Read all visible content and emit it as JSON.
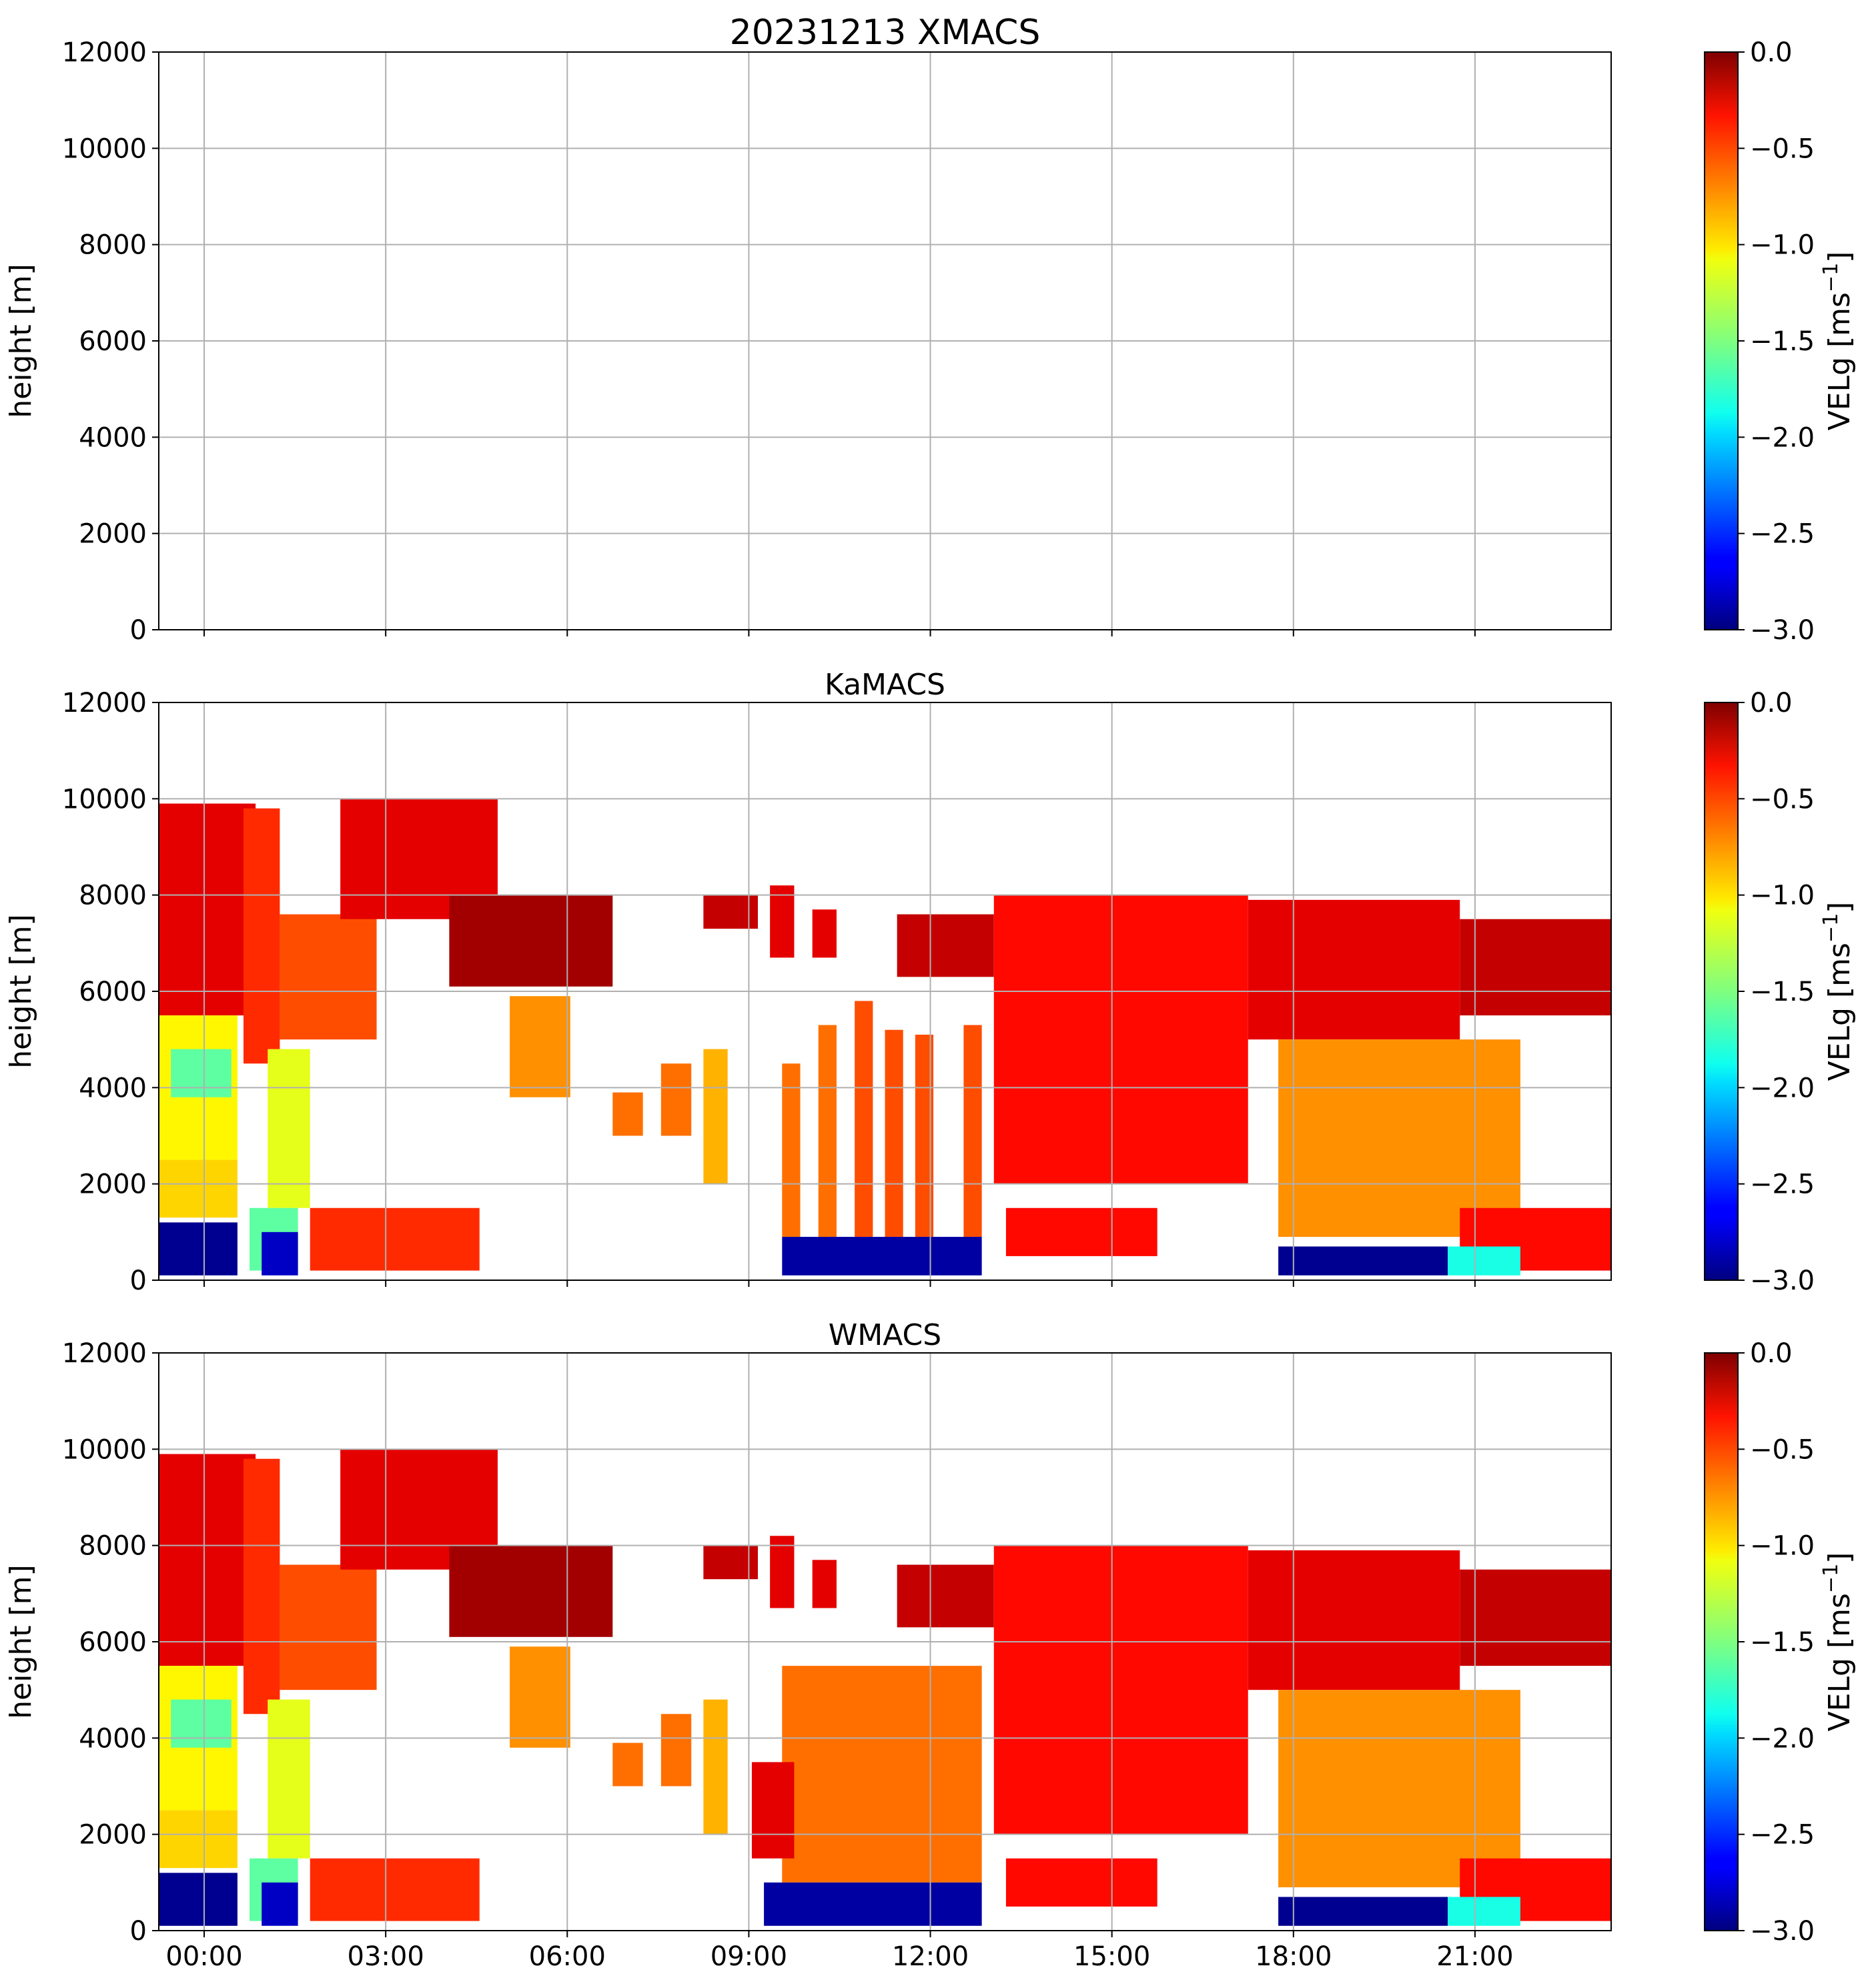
{
  "figure": {
    "colormap": "jet",
    "xtick_labels": [
      "00:00",
      "03:00",
      "06:00",
      "09:00",
      "12:00",
      "15:00",
      "18:00",
      "21:00"
    ],
    "xtick_hours": [
      0.75,
      3.75,
      6.75,
      9.75,
      12.75,
      15.75,
      18.75,
      21.75
    ],
    "xlim_hours": [
      0,
      24
    ],
    "grid": true
  },
  "chart_data": [
    {
      "type": "heatmap",
      "title": "20231213 XMACS",
      "ylabel": "height [m]",
      "ylim": [
        0,
        12000
      ],
      "yticks": [
        0,
        2000,
        4000,
        6000,
        8000,
        10000,
        12000
      ],
      "ytick_labels": [
        "0",
        "2000",
        "4000",
        "6000",
        "8000",
        "10000",
        "12000"
      ],
      "colorbar": {
        "label_main": "VELg [ms",
        "label_sup": "−1",
        "label_end": "]",
        "range": [
          -3.0,
          0.0
        ],
        "ticks": [
          0.0,
          -0.5,
          -1.0,
          -1.5,
          -2.0,
          -2.5,
          -3.0
        ],
        "tick_labels": [
          "0.0",
          "−0.5",
          "−1.0",
          "−1.5",
          "−2.0",
          "−2.5",
          "−3.0"
        ]
      },
      "cells": []
    },
    {
      "type": "heatmap",
      "title": "KaMACS",
      "ylabel": "height [m]",
      "ylim": [
        0,
        12000
      ],
      "yticks": [
        0,
        2000,
        4000,
        6000,
        8000,
        10000,
        12000
      ],
      "ytick_labels": [
        "0",
        "2000",
        "4000",
        "6000",
        "8000",
        "10000",
        "12000"
      ],
      "colorbar": {
        "label_main": "VELg [ms",
        "label_sup": "−1",
        "label_end": "]",
        "range": [
          -3.0,
          0.0
        ],
        "ticks": [
          0.0,
          -0.5,
          -1.0,
          -1.5,
          -2.0,
          -2.5,
          -3.0
        ],
        "tick_labels": [
          "0.0",
          "−0.5",
          "−1.0",
          "−1.5",
          "−2.0",
          "−2.5",
          "−3.0"
        ]
      },
      "cells": [
        {
          "t0": 0.0,
          "t1": 1.6,
          "h0": 5500,
          "h1": 9900,
          "v": -0.3
        },
        {
          "t0": 0.0,
          "t1": 1.3,
          "h0": 2500,
          "h1": 5500,
          "v": -1.1
        },
        {
          "t0": 0.2,
          "t1": 1.2,
          "h0": 3800,
          "h1": 4800,
          "v": -1.6
        },
        {
          "t0": 0.0,
          "t1": 1.3,
          "h0": 1300,
          "h1": 2500,
          "v": -1.0
        },
        {
          "t0": 1.4,
          "t1": 2.0,
          "h0": 4500,
          "h1": 9800,
          "v": -0.5
        },
        {
          "t0": 2.0,
          "t1": 3.6,
          "h0": 5000,
          "h1": 7600,
          "v": -0.6
        },
        {
          "t0": 1.8,
          "t1": 2.5,
          "h0": 1500,
          "h1": 4800,
          "v": -1.2
        },
        {
          "t0": 2.5,
          "t1": 5.3,
          "h0": 200,
          "h1": 1500,
          "v": -0.5
        },
        {
          "t0": 1.5,
          "t1": 2.3,
          "h0": 200,
          "h1": 1500,
          "v": -1.6
        },
        {
          "t0": 3.0,
          "t1": 5.6,
          "h0": 7500,
          "h1": 10000,
          "v": -0.3
        },
        {
          "t0": 4.8,
          "t1": 7.5,
          "h0": 6100,
          "h1": 8000,
          "v": -0.1
        },
        {
          "t0": 5.8,
          "t1": 6.8,
          "h0": 3800,
          "h1": 5900,
          "v": -0.8
        },
        {
          "t0": 7.5,
          "t1": 8.0,
          "h0": 3000,
          "h1": 3900,
          "v": -0.7
        },
        {
          "t0": 8.3,
          "t1": 8.8,
          "h0": 3000,
          "h1": 4500,
          "v": -0.7
        },
        {
          "t0": 9.0,
          "t1": 9.4,
          "h0": 2000,
          "h1": 4800,
          "v": -0.9
        },
        {
          "t0": 9.0,
          "t1": 9.9,
          "h0": 7300,
          "h1": 8000,
          "v": -0.2
        },
        {
          "t0": 10.1,
          "t1": 10.5,
          "h0": 6700,
          "h1": 8200,
          "v": -0.3
        },
        {
          "t0": 10.8,
          "t1": 11.2,
          "h0": 6700,
          "h1": 7700,
          "v": -0.3
        },
        {
          "t0": 10.3,
          "t1": 10.6,
          "h0": 900,
          "h1": 4500,
          "v": -0.7
        },
        {
          "t0": 10.9,
          "t1": 11.2,
          "h0": 900,
          "h1": 5300,
          "v": -0.7
        },
        {
          "t0": 11.5,
          "t1": 11.8,
          "h0": 900,
          "h1": 5800,
          "v": -0.6
        },
        {
          "t0": 12.0,
          "t1": 12.3,
          "h0": 900,
          "h1": 5200,
          "v": -0.6
        },
        {
          "t0": 12.5,
          "t1": 12.8,
          "h0": 900,
          "h1": 5100,
          "v": -0.6
        },
        {
          "t0": 13.3,
          "t1": 13.6,
          "h0": 900,
          "h1": 5300,
          "v": -0.6
        },
        {
          "t0": 10.3,
          "t1": 13.6,
          "h0": 100,
          "h1": 900,
          "v": -2.9
        },
        {
          "t0": 12.2,
          "t1": 13.8,
          "h0": 6300,
          "h1": 7600,
          "v": -0.2
        },
        {
          "t0": 13.8,
          "t1": 18.0,
          "h0": 2000,
          "h1": 8000,
          "v": -0.4
        },
        {
          "t0": 18.0,
          "t1": 21.5,
          "h0": 5000,
          "h1": 7900,
          "v": -0.3
        },
        {
          "t0": 18.5,
          "t1": 22.5,
          "h0": 900,
          "h1": 5000,
          "v": -0.8
        },
        {
          "t0": 21.5,
          "t1": 24.0,
          "h0": 5500,
          "h1": 7500,
          "v": -0.2
        },
        {
          "t0": 14.0,
          "t1": 16.5,
          "h0": 500,
          "h1": 1500,
          "v": -0.4
        },
        {
          "t0": 21.5,
          "t1": 24.0,
          "h0": 200,
          "h1": 1500,
          "v": -0.4
        },
        {
          "t0": 0.0,
          "t1": 1.3,
          "h0": 100,
          "h1": 1200,
          "v": -2.95
        },
        {
          "t0": 1.7,
          "t1": 2.3,
          "h0": 100,
          "h1": 1000,
          "v": -2.8
        },
        {
          "t0": 18.5,
          "t1": 21.3,
          "h0": 100,
          "h1": 700,
          "v": -2.95
        },
        {
          "t0": 21.3,
          "t1": 22.5,
          "h0": 100,
          "h1": 700,
          "v": -1.8
        }
      ]
    },
    {
      "type": "heatmap",
      "title": "WMACS",
      "ylabel": "height [m]",
      "ylim": [
        0,
        12000
      ],
      "yticks": [
        0,
        2000,
        4000,
        6000,
        8000,
        10000,
        12000
      ],
      "ytick_labels": [
        "0",
        "2000",
        "4000",
        "6000",
        "8000",
        "10000",
        "12000"
      ],
      "colorbar": {
        "label_main": "VELg [ms",
        "label_sup": "−1",
        "label_end": "]",
        "range": [
          -3.0,
          0.0
        ],
        "ticks": [
          0.0,
          -0.5,
          -1.0,
          -1.5,
          -2.0,
          -2.5,
          -3.0
        ],
        "tick_labels": [
          "0.0",
          "−0.5",
          "−1.0",
          "−1.5",
          "−2.0",
          "−2.5",
          "−3.0"
        ]
      },
      "cells": [
        {
          "t0": 0.0,
          "t1": 1.6,
          "h0": 5500,
          "h1": 9900,
          "v": -0.3
        },
        {
          "t0": 0.0,
          "t1": 1.3,
          "h0": 2500,
          "h1": 5500,
          "v": -1.1
        },
        {
          "t0": 0.2,
          "t1": 1.2,
          "h0": 3800,
          "h1": 4800,
          "v": -1.6
        },
        {
          "t0": 0.0,
          "t1": 1.3,
          "h0": 1300,
          "h1": 2500,
          "v": -1.0
        },
        {
          "t0": 1.4,
          "t1": 2.0,
          "h0": 4500,
          "h1": 9800,
          "v": -0.5
        },
        {
          "t0": 2.0,
          "t1": 3.6,
          "h0": 5000,
          "h1": 7600,
          "v": -0.6
        },
        {
          "t0": 1.8,
          "t1": 2.5,
          "h0": 1500,
          "h1": 4800,
          "v": -1.2
        },
        {
          "t0": 2.5,
          "t1": 5.3,
          "h0": 200,
          "h1": 1500,
          "v": -0.5
        },
        {
          "t0": 1.5,
          "t1": 2.3,
          "h0": 200,
          "h1": 1500,
          "v": -1.6
        },
        {
          "t0": 3.0,
          "t1": 5.6,
          "h0": 7500,
          "h1": 10000,
          "v": -0.3
        },
        {
          "t0": 4.8,
          "t1": 7.5,
          "h0": 6100,
          "h1": 8000,
          "v": -0.1
        },
        {
          "t0": 5.8,
          "t1": 6.8,
          "h0": 3800,
          "h1": 5900,
          "v": -0.8
        },
        {
          "t0": 7.5,
          "t1": 8.0,
          "h0": 3000,
          "h1": 3900,
          "v": -0.7
        },
        {
          "t0": 8.3,
          "t1": 8.8,
          "h0": 3000,
          "h1": 4500,
          "v": -0.7
        },
        {
          "t0": 9.0,
          "t1": 9.4,
          "h0": 2000,
          "h1": 4800,
          "v": -0.9
        },
        {
          "t0": 9.0,
          "t1": 9.9,
          "h0": 7300,
          "h1": 8000,
          "v": -0.2
        },
        {
          "t0": 10.1,
          "t1": 10.5,
          "h0": 6700,
          "h1": 8200,
          "v": -0.3
        },
        {
          "t0": 10.8,
          "t1": 11.2,
          "h0": 6700,
          "h1": 7700,
          "v": -0.3
        },
        {
          "t0": 10.3,
          "t1": 13.6,
          "h0": 1000,
          "h1": 5500,
          "v": -0.7
        },
        {
          "t0": 9.8,
          "t1": 10.5,
          "h0": 1500,
          "h1": 3500,
          "v": -0.3
        },
        {
          "t0": 10.0,
          "t1": 13.6,
          "h0": 100,
          "h1": 1000,
          "v": -2.9
        },
        {
          "t0": 12.2,
          "t1": 13.8,
          "h0": 6300,
          "h1": 7600,
          "v": -0.2
        },
        {
          "t0": 13.8,
          "t1": 18.0,
          "h0": 2000,
          "h1": 8000,
          "v": -0.4
        },
        {
          "t0": 18.0,
          "t1": 21.5,
          "h0": 5000,
          "h1": 7900,
          "v": -0.3
        },
        {
          "t0": 18.5,
          "t1": 22.5,
          "h0": 900,
          "h1": 5000,
          "v": -0.8
        },
        {
          "t0": 21.5,
          "t1": 24.0,
          "h0": 5500,
          "h1": 7500,
          "v": -0.2
        },
        {
          "t0": 14.0,
          "t1": 16.5,
          "h0": 500,
          "h1": 1500,
          "v": -0.4
        },
        {
          "t0": 21.5,
          "t1": 24.0,
          "h0": 200,
          "h1": 1500,
          "v": -0.4
        },
        {
          "t0": 0.0,
          "t1": 1.3,
          "h0": 100,
          "h1": 1200,
          "v": -2.95
        },
        {
          "t0": 1.7,
          "t1": 2.3,
          "h0": 100,
          "h1": 1000,
          "v": -2.8
        },
        {
          "t0": 18.5,
          "t1": 21.3,
          "h0": 100,
          "h1": 700,
          "v": -2.95
        },
        {
          "t0": 21.3,
          "t1": 22.5,
          "h0": 100,
          "h1": 700,
          "v": -1.8
        }
      ]
    }
  ]
}
